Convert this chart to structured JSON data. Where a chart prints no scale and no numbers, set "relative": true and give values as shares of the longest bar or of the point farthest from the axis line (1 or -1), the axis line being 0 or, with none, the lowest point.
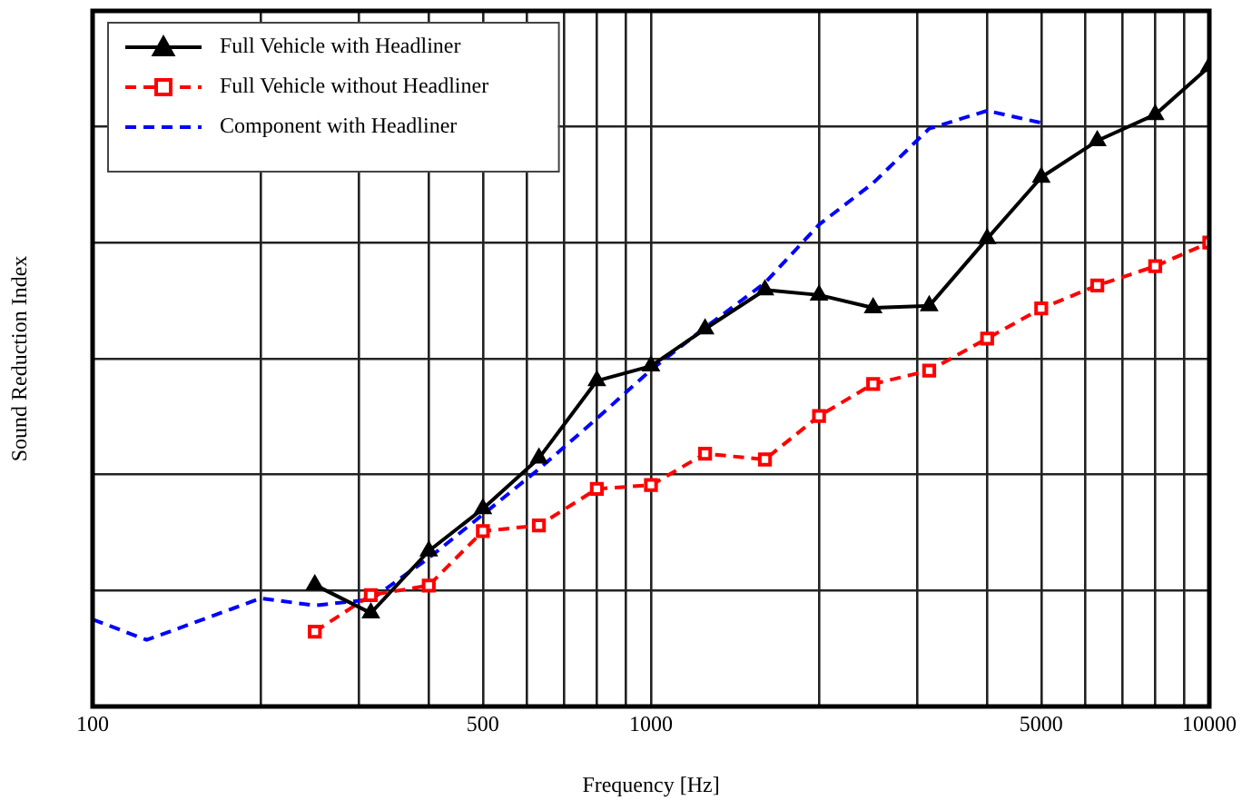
{
  "chart_data": {
    "type": "line",
    "xlabel": "Frequency [Hz]",
    "ylabel": "Sound Reduction Index",
    "log": "x",
    "relative": true,
    "grid": true,
    "legend": "top left",
    "xlim": [
      100,
      10000
    ],
    "xticks": [
      100,
      {
        "value": 200,
        "label": null
      },
      {
        "value": 300,
        "label": null
      },
      {
        "value": 400,
        "label": null
      },
      500,
      {
        "value": 600,
        "label": null
      },
      {
        "value": 700,
        "label": null
      },
      {
        "value": 800,
        "label": null
      },
      {
        "value": 900,
        "label": null
      },
      1000,
      {
        "value": 2000,
        "label": null
      },
      {
        "value": 3000,
        "label": null
      },
      {
        "value": 4000,
        "label": null
      },
      5000,
      {
        "value": 6000,
        "label": null
      },
      {
        "value": 7000,
        "label": null
      },
      {
        "value": 8000,
        "label": null
      },
      {
        "value": 9000,
        "label": null
      },
      10000
    ],
    "series": [
      {
        "name": "Full Vehicle with Headliner",
        "color": "#000000",
        "marker": "triangle",
        "line_style": "solid",
        "x": [
          250,
          315,
          400,
          500,
          630,
          800,
          1000,
          1250,
          1600,
          2000,
          2500,
          3150,
          4000,
          5000,
          6300,
          8000,
          10000
        ],
        "values": [
          0.19,
          0.146,
          0.243,
          0.309,
          0.388,
          0.509,
          0.532,
          0.59,
          0.651,
          0.643,
          0.623,
          0.626,
          0.731,
          0.827,
          0.884,
          0.925,
          1.0
        ]
      },
      {
        "name": "Full Vehicle without Headliner",
        "color": "#ff0000",
        "marker": "square",
        "line_style": "dashed",
        "x": [
          250,
          315,
          400,
          500,
          630,
          800,
          1000,
          1250,
          1600,
          2000,
          2500,
          3150,
          4000,
          5000,
          6300,
          8000,
          10000
        ],
        "values": [
          0.117,
          0.174,
          0.189,
          0.274,
          0.283,
          0.34,
          0.346,
          0.395,
          0.386,
          0.454,
          0.504,
          0.525,
          0.575,
          0.622,
          0.658,
          0.688,
          0.725
        ]
      },
      {
        "name": "Component with Headliner",
        "color": "#0000ff",
        "marker": "none",
        "line_style": "dashed",
        "x": [
          100,
          125,
          200,
          250,
          315,
          400,
          500,
          630,
          800,
          1000,
          1250,
          1600,
          2000,
          2500,
          3150,
          4000,
          5000
        ],
        "values": [
          0.136,
          0.104,
          0.169,
          0.158,
          0.167,
          0.232,
          0.3,
          0.371,
          0.45,
          0.526,
          0.592,
          0.662,
          0.753,
          0.818,
          0.903,
          0.931,
          0.912
        ]
      }
    ]
  }
}
